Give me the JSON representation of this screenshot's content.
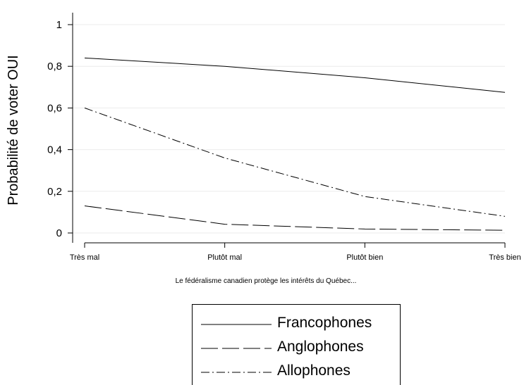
{
  "chart_data": {
    "type": "line",
    "title": "",
    "xlabel": "Le fédéralisme canadien protège les intérêts du Québec...",
    "ylabel": "Probabilité de voter OUI",
    "categories": [
      "Très mal",
      "Plutôt mal",
      "Plutôt bien",
      "Très bien"
    ],
    "ylim": [
      0,
      1
    ],
    "yticks": [
      "0",
      "0,2",
      "0,4",
      "0,6",
      "0,8",
      "1"
    ],
    "ytick_values": [
      0,
      0.2,
      0.4,
      0.6,
      0.8,
      1
    ],
    "grid": true,
    "legend_position": "bottom",
    "series": [
      {
        "name": "Francophones",
        "values": [
          0.84,
          0.8,
          0.745,
          0.675
        ],
        "dash": "solid"
      },
      {
        "name": "Anglophones",
        "values": [
          0.13,
          0.042,
          0.019,
          0.013
        ],
        "dash": "long-dash"
      },
      {
        "name": "Allophones",
        "values": [
          0.6,
          0.36,
          0.175,
          0.08
        ],
        "dash": "dash-dot"
      }
    ]
  }
}
